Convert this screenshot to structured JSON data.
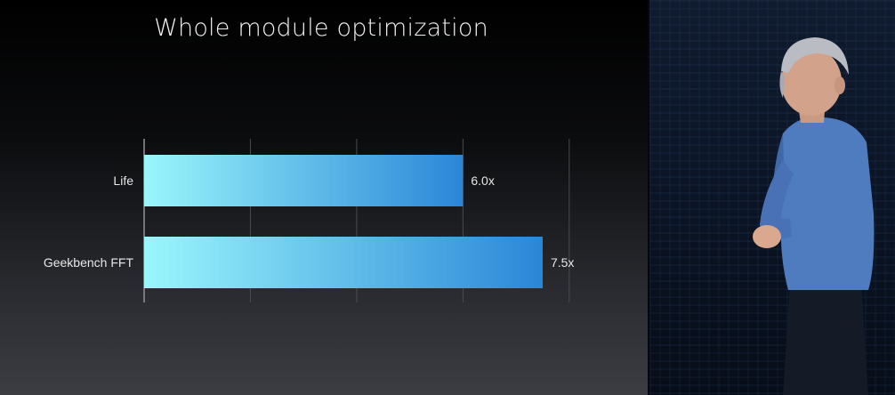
{
  "slide": {
    "title": "Whole module optimization"
  },
  "colors": {
    "bar_start": "#9af6fb",
    "bar_end": "#2b86d8",
    "gridline": "#4a4b50",
    "text": "#e8e8e8"
  },
  "presenter_photo": {
    "icon": "presenter-photo"
  },
  "chart_data": {
    "type": "bar",
    "orientation": "horizontal",
    "title": "Whole module optimization",
    "categories": [
      "Life",
      "Geekbench FFT"
    ],
    "values": [
      6.0,
      7.5
    ],
    "value_labels": [
      "6.0x",
      "7.5x"
    ],
    "xlim": [
      0,
      8
    ],
    "grid": true,
    "legend": "none"
  }
}
